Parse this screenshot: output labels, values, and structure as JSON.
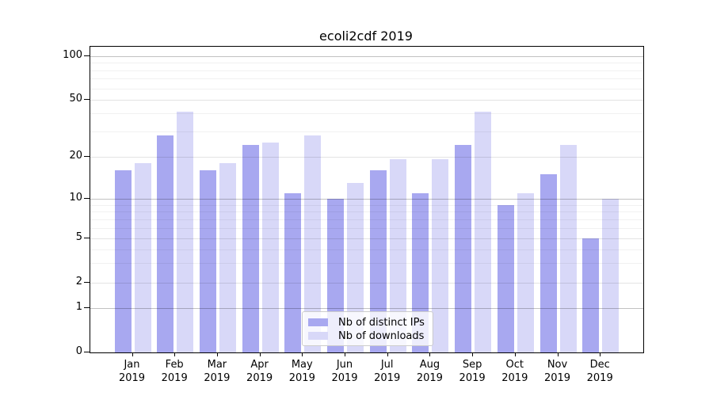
{
  "chart_data": {
    "type": "bar",
    "title": "ecoli2cdf 2019",
    "categories": [
      "Jan 2019",
      "Feb 2019",
      "Mar 2019",
      "Apr 2019",
      "May 2019",
      "Jun 2019",
      "Jul 2019",
      "Aug 2019",
      "Sep 2019",
      "Oct 2019",
      "Nov 2019",
      "Dec 2019"
    ],
    "series": [
      {
        "name": "Nb of distinct IPs",
        "color": "#a8a8f0",
        "values": [
          16,
          28,
          16,
          24,
          11,
          10,
          16,
          11,
          24,
          9,
          15,
          5
        ]
      },
      {
        "name": "Nb of downloads",
        "color": "#d8d8f8",
        "values": [
          18,
          41,
          18,
          25,
          28,
          13,
          19,
          19,
          41,
          11,
          24,
          10
        ]
      }
    ],
    "yscale": "symlog",
    "ylim": [
      0,
      117
    ],
    "yticks": [
      100,
      50,
      20,
      10,
      5,
      2,
      1,
      0
    ],
    "minor_yticks": [
      3,
      4,
      6,
      7,
      8,
      9,
      30,
      40,
      60,
      70,
      80,
      90
    ],
    "grid": true,
    "legend_position": "lower center",
    "xlabel": "",
    "ylabel": ""
  }
}
